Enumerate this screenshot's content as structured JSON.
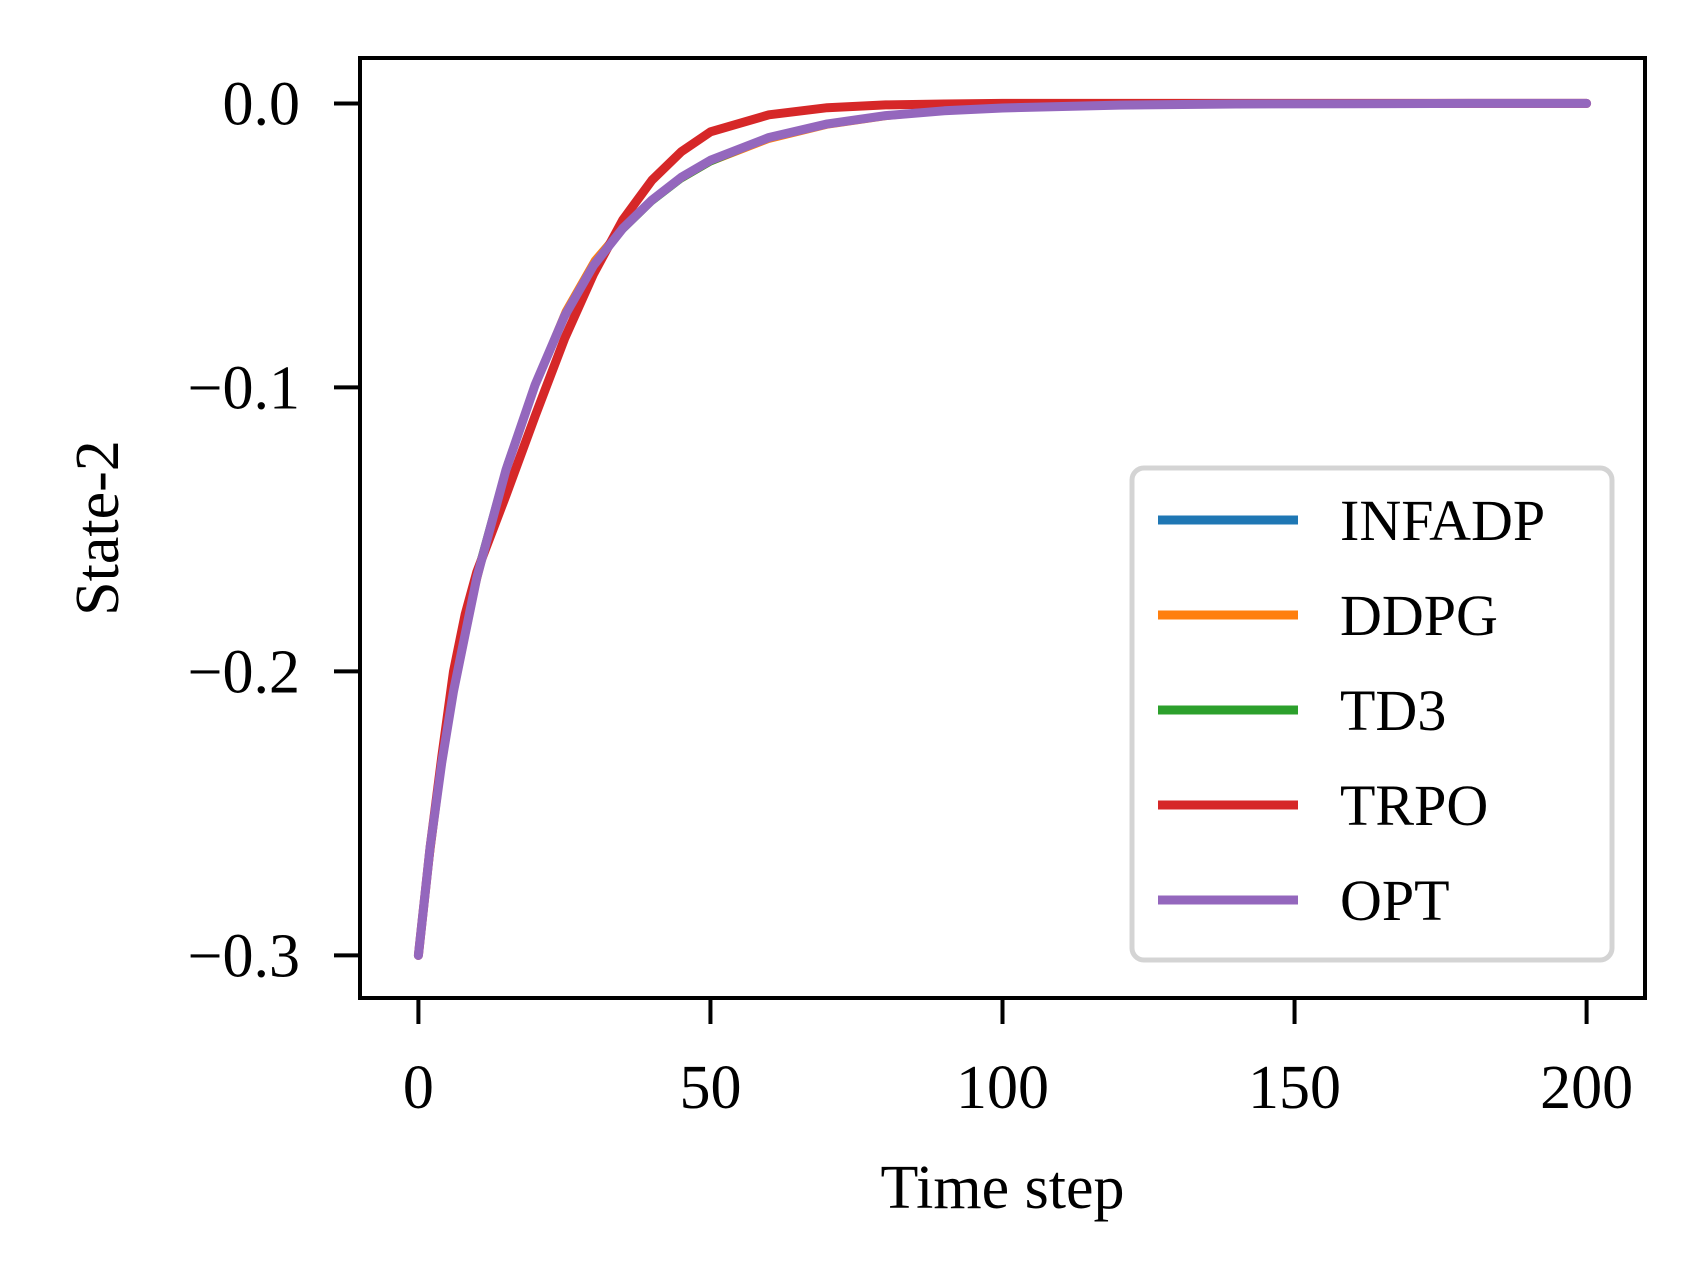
{
  "chart_data": {
    "type": "line",
    "title": "",
    "xlabel": "Time step",
    "ylabel": "State-2",
    "xlim": [
      -10,
      210
    ],
    "ylim": [
      -0.315,
      0.016
    ],
    "xticks": [
      0,
      50,
      100,
      150,
      200
    ],
    "xtick_labels": [
      "0",
      "50",
      "100",
      "150",
      "200"
    ],
    "yticks": [
      0.0,
      -0.1,
      -0.2,
      -0.3
    ],
    "ytick_labels": [
      "0.0",
      "−0.1",
      "−0.2",
      "−0.3"
    ],
    "grid": false,
    "legend_position": "lower-right",
    "x": [
      0,
      2,
      4,
      6,
      8,
      10,
      15,
      20,
      25,
      30,
      35,
      40,
      45,
      50,
      60,
      70,
      80,
      90,
      100,
      120,
      140,
      160,
      180,
      200
    ],
    "series": [
      {
        "name": "INFADP",
        "color": "#1f77b4",
        "values": [
          -0.3,
          -0.262,
          -0.232,
          -0.207,
          -0.187,
          -0.167,
          -0.129,
          -0.099,
          -0.075,
          -0.057,
          -0.044,
          -0.034,
          -0.026,
          -0.02,
          -0.012,
          -0.0072,
          -0.0043,
          -0.0026,
          -0.0016,
          -0.0006,
          -0.0002,
          -0.0001,
          0.0,
          0.0
        ]
      },
      {
        "name": "DDPG",
        "color": "#ff7f0e",
        "values": [
          -0.3,
          -0.268,
          -0.236,
          -0.21,
          -0.19,
          -0.17,
          -0.129,
          -0.098,
          -0.073,
          -0.055,
          -0.043,
          -0.034,
          -0.027,
          -0.021,
          -0.013,
          -0.008,
          -0.005,
          -0.003,
          -0.0019,
          -0.0008,
          -0.0003,
          -0.0001,
          0.0,
          0.0
        ]
      },
      {
        "name": "TD3",
        "color": "#2ca02c",
        "values": [
          -0.3,
          -0.258,
          -0.226,
          -0.202,
          -0.183,
          -0.164,
          -0.127,
          -0.098,
          -0.075,
          -0.058,
          -0.045,
          -0.035,
          -0.027,
          -0.021,
          -0.0125,
          -0.0074,
          -0.0044,
          -0.0026,
          -0.0016,
          -0.0006,
          -0.0002,
          -0.0001,
          0.0,
          0.0
        ]
      },
      {
        "name": "TRPO",
        "color": "#d62728",
        "values": [
          -0.3,
          -0.262,
          -0.23,
          -0.2,
          -0.18,
          -0.165,
          -0.138,
          -0.11,
          -0.083,
          -0.06,
          -0.041,
          -0.027,
          -0.017,
          -0.01,
          -0.004,
          -0.0015,
          -0.0005,
          -0.0002,
          0.0,
          0.0,
          0.0,
          0.0,
          0.0,
          0.0
        ]
      },
      {
        "name": "OPT",
        "color": "#9467bd",
        "values": [
          -0.3,
          -0.262,
          -0.232,
          -0.207,
          -0.187,
          -0.167,
          -0.129,
          -0.099,
          -0.075,
          -0.057,
          -0.044,
          -0.034,
          -0.026,
          -0.02,
          -0.012,
          -0.0072,
          -0.0043,
          -0.0026,
          -0.0016,
          -0.0006,
          -0.0002,
          -0.0001,
          0.0,
          0.0
        ]
      }
    ]
  }
}
